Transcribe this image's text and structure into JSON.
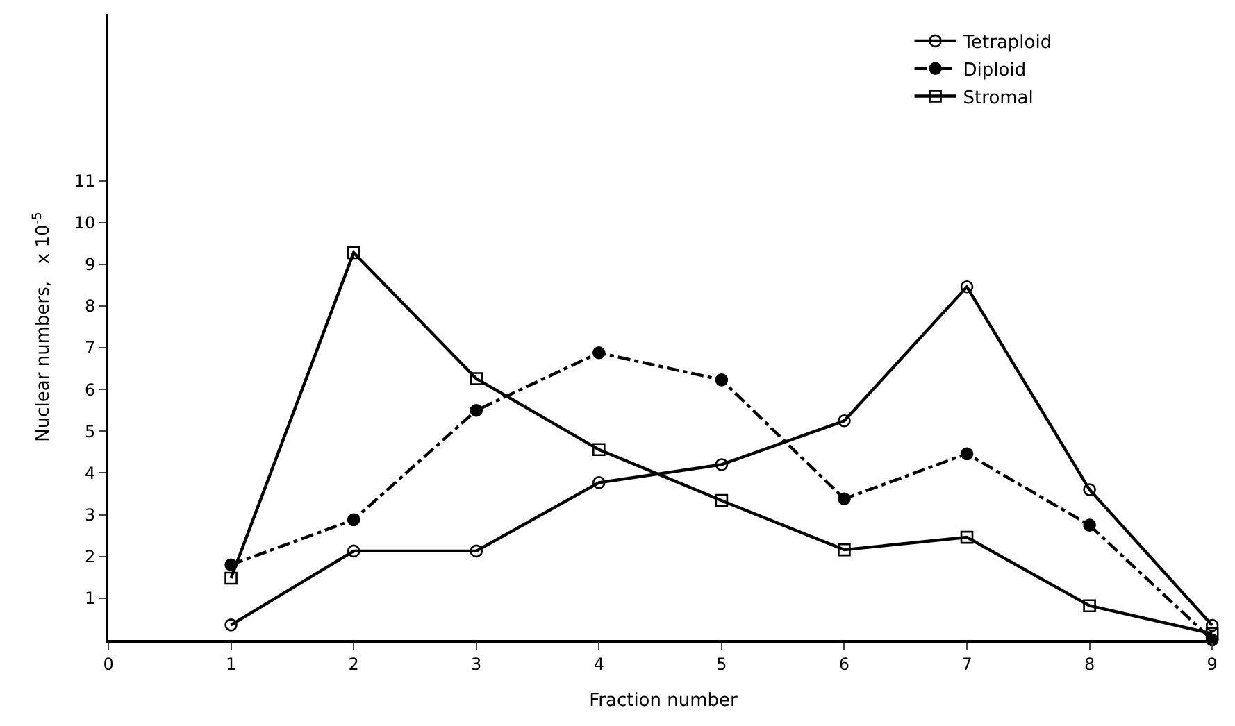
{
  "chart_data": {
    "type": "line",
    "xlabel": "Fraction number",
    "ylabel": "Nuclear numbers,   x 10$^{-5}$",
    "x": [
      1,
      2,
      3,
      4,
      5,
      6,
      7,
      8,
      9
    ],
    "series": [
      {
        "name": "Tetraploid",
        "color": "#000000",
        "marker": "circle",
        "line_style": "solid",
        "values": [
          0.36,
          2.13,
          2.13,
          3.77,
          4.2,
          5.25,
          8.46,
          3.6,
          0.35
        ]
      },
      {
        "name": "Diploid",
        "color": "#000000",
        "marker": "circle",
        "line_style": "dashed",
        "values": [
          1.8,
          2.88,
          5.5,
          6.88,
          6.23,
          3.38,
          4.46,
          2.75,
          0
        ]
      },
      {
        "name": "Stromal",
        "color": "#000000",
        "marker": "square",
        "line_style": "solid",
        "values": [
          1.48,
          9.28,
          6.26,
          4.56,
          3.34,
          2.16,
          2.46,
          0.82,
          0.15
        ]
      }
    ],
    "xlim": [
      0,
      9.05
    ],
    "ylim": [
      0,
      15
    ],
    "xticks": [
      0,
      1,
      2,
      3,
      4,
      5,
      6,
      7,
      8,
      9
    ],
    "yticks": [
      1,
      2,
      3,
      4,
      5,
      6,
      7,
      8,
      9,
      10,
      11
    ],
    "legend": "top right"
  }
}
